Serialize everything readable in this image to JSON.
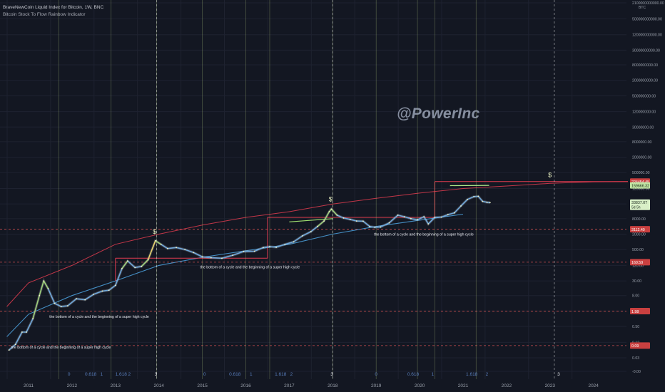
{
  "header": {
    "title": "BraveNewCoin Liquid Index for Bitcoin, 1W, BNC",
    "subtitle": "Bitcoin Stock To Flow Rainbow Indicator"
  },
  "watermark": "@PowerInc",
  "colors": {
    "background": "#131722",
    "grid": "#1e2230",
    "cycle_vline": "#c8e08c",
    "halving_vline": "#ffffff",
    "level_line": "#e05555",
    "label_red_bg": "#c94040",
    "label_green_bg": "#bfe3a3",
    "upper_bound": "#e03c4f",
    "lower_bound": "#4ea3e0",
    "fib_label": "#5a7fbf"
  },
  "chart_data": {
    "type": "line",
    "title": "BraveNewCoin Liquid Index for Bitcoin, 1W, BNC",
    "subtitle": "Bitcoin Stock To Flow Rainbow Indicator",
    "y_scale": "log",
    "ylim": [
      0.0,
      2100000000000
    ],
    "xlim": [
      2010.4,
      2024.9
    ],
    "y_axis_unit": "BTC",
    "y_ticks": [
      "2100000000000.00",
      "500000000000.00",
      "120000000000.00",
      "30000000000.00",
      "8000000000.00",
      "2000000000.00",
      "500000000.00",
      "120000000.00",
      "30000000.00",
      "8000000.00",
      "2000000.00",
      "500000.00",
      "120000.00",
      "30000.00",
      "8000.00",
      "2000.00",
      "500.00",
      "120.00",
      "30.00",
      "8.00",
      "2.00",
      "0.50",
      "0.12",
      "0.03",
      "-0.00"
    ],
    "y_tick_values": [
      2100000000000,
      500000000000,
      120000000000,
      30000000000,
      8000000000,
      2000000000,
      500000000,
      120000000,
      30000000,
      8000000,
      2000000,
      500000,
      120000,
      30000,
      8000,
      2000,
      500,
      120,
      30,
      8,
      2,
      0.5,
      0.12,
      0.03,
      0.0
    ],
    "x_ticks": [
      "2011",
      "2012",
      "2013",
      "2014",
      "2015",
      "2016",
      "2017",
      "2018",
      "2019",
      "2020",
      "2021",
      "2022",
      "2023",
      "2024"
    ],
    "x_tick_values": [
      2011,
      2012,
      2013,
      2014,
      2015,
      2016,
      2017,
      2018,
      2019,
      2020,
      2021,
      2022,
      2023,
      2024
    ],
    "price_series": {
      "x": [
        2010.55,
        2010.7,
        2010.85,
        2010.95,
        2011.1,
        2011.25,
        2011.35,
        2011.45,
        2011.6,
        2011.75,
        2011.9,
        2012.1,
        2012.3,
        2012.5,
        2012.7,
        2012.85,
        2013.0,
        2013.15,
        2013.28,
        2013.45,
        2013.6,
        2013.75,
        2013.92,
        2014.05,
        2014.2,
        2014.4,
        2014.6,
        2014.8,
        2015.0,
        2015.2,
        2015.45,
        2015.7,
        2015.95,
        2016.2,
        2016.4,
        2016.55,
        2016.7,
        2016.9,
        2017.1,
        2017.3,
        2017.5,
        2017.65,
        2017.8,
        2017.92,
        2017.97,
        2018.1,
        2018.25,
        2018.4,
        2018.55,
        2018.7,
        2018.85,
        2018.97,
        2019.1,
        2019.3,
        2019.5,
        2019.65,
        2019.8,
        2019.95,
        2020.1,
        2020.2,
        2020.35,
        2020.5,
        2020.65,
        2020.8,
        2020.95,
        2021.1,
        2021.25,
        2021.35,
        2021.45,
        2021.55,
        2021.62
      ],
      "y": [
        0.06,
        0.1,
        0.3,
        0.3,
        1.0,
        8.0,
        30.0,
        15.0,
        4.0,
        3.0,
        3.2,
        6.0,
        5.5,
        9.0,
        12.0,
        13.0,
        20.0,
        90.0,
        180.0,
        100.0,
        110.0,
        200.0,
        1100.0,
        800.0,
        550.0,
        600.0,
        500.0,
        380.0,
        260.0,
        240.0,
        230.0,
        300.0,
        420.0,
        430.0,
        600.0,
        650.0,
        610.0,
        800.0,
        1000.0,
        1700.0,
        2500.0,
        4000.0,
        6500.0,
        15000.0,
        19000.0,
        11000.0,
        8500.0,
        7500.0,
        6500.0,
        6400.0,
        4000.0,
        3700.0,
        3800.0,
        5500.0,
        11000.0,
        9500.0,
        8000.0,
        7300.0,
        9500.0,
        5000.0,
        9000.0,
        9200.0,
        11500.0,
        13500.0,
        25000.0,
        45000.0,
        58000.0,
        60000.0,
        38000.0,
        35000.0,
        33837.07
      ]
    },
    "upper_band": {
      "x": [
        2010.5,
        2011.0,
        2012.0,
        2013.0,
        2014.0,
        2015.0,
        2016.0,
        2017.0,
        2018.0,
        2019.0,
        2020.0,
        2021.0,
        2022.0,
        2023.0,
        2024.0,
        2024.9
      ],
      "y": [
        3.0,
        25.0,
        120.0,
        800.0,
        2000.0,
        4500.0,
        9000.0,
        15000.0,
        30000.0,
        50000.0,
        80000.0,
        120000.0,
        150000.0,
        190000.0,
        220000.0,
        224454.45
      ]
    },
    "lower_band": {
      "x": [
        2010.5,
        2011.0,
        2012.0,
        2013.0,
        2014.0,
        2015.0,
        2016.0,
        2017.0,
        2018.0,
        2019.0,
        2020.0,
        2021.0
      ],
      "y": [
        0.2,
        1.5,
        8.0,
        30.0,
        120.0,
        250.0,
        450.0,
        800.0,
        2000.0,
        4000.0,
        7000.0,
        12000.0
      ]
    },
    "step_levels": [
      {
        "x_start": 2013.0,
        "x_end": 2016.5,
        "y": 230.0
      },
      {
        "x_start": 2016.5,
        "x_end": 2020.35,
        "y": 9000.0
      },
      {
        "x_start": 2020.35,
        "x_end": 2024.9,
        "y": 224454.45
      }
    ],
    "model_segments": [
      {
        "x": [
          2020.7,
          2021.6
        ],
        "y": [
          155000.0,
          159666.32
        ],
        "color": "#b8f08c"
      },
      {
        "x": [
          2017.0,
          2018.0
        ],
        "y": [
          6000.0,
          8000.0
        ],
        "color": "#a0e070"
      }
    ],
    "horizontal_levels": [
      {
        "label": "224454.45",
        "value": 224454.45,
        "style": "red"
      },
      {
        "label": "159666.32",
        "value": 159666.32,
        "style": "green"
      },
      {
        "label": "3112.40",
        "value": 3112.4,
        "style": "red"
      },
      {
        "label": "160.59",
        "value": 160.59,
        "style": "red"
      },
      {
        "label": "1.98",
        "value": 1.98,
        "style": "red"
      },
      {
        "label": "0.09",
        "value": 0.09,
        "style": "red"
      }
    ],
    "current_price": {
      "label": "33837.07",
      "sub": "5d 5h",
      "value": 33837.07
    },
    "cycle_vlines": [
      2011.7,
      2012.9,
      2013.95,
      2015.0,
      2016.0,
      2016.55,
      2018.0,
      2019.0,
      2019.95,
      2020.35,
      2021.3
    ],
    "halving_vlines": [
      2013.95,
      2018.0,
      2023.1
    ],
    "fib_labels": [
      {
        "text": "0",
        "x": 2011.93
      },
      {
        "text": "0.618",
        "x": 2012.43
      },
      {
        "text": "1",
        "x": 2012.68
      },
      {
        "text": "1.618",
        "x": 2013.13
      },
      {
        "text": "2",
        "x": 2013.32
      },
      {
        "text": "3",
        "x": 2013.93
      },
      {
        "text": "0",
        "x": 2015.05
      },
      {
        "text": "0.618",
        "x": 2015.75
      },
      {
        "text": "1",
        "x": 2016.12
      },
      {
        "text": "1.618",
        "x": 2016.8
      },
      {
        "text": "2",
        "x": 2017.05
      },
      {
        "text": "3",
        "x": 2017.98
      },
      {
        "text": "0",
        "x": 2019.0
      },
      {
        "text": "0.618",
        "x": 2019.85
      },
      {
        "text": "1",
        "x": 2020.3
      },
      {
        "text": "1.618",
        "x": 2021.2
      },
      {
        "text": "2",
        "x": 2021.55
      },
      {
        "text": "3",
        "x": 2023.2
      }
    ],
    "annotations": [
      {
        "text": "the bottom of a cycle and the beginning of a super high cycle",
        "x": 2010.6,
        "y": 0.09
      },
      {
        "text": "the bottom of a cycle and the beginning of a super high cycle",
        "x": 2011.48,
        "y": 1.4
      },
      {
        "text": "the bottom of a cycle and the beginning of a super high cycle",
        "x": 2014.95,
        "y": 120.0
      },
      {
        "text": "the bottom of a cycle and the beginning of a super high cycle",
        "x": 2018.95,
        "y": 2300.0
      }
    ],
    "top_markers": [
      {
        "text": "$",
        "x": 2013.9,
        "y": 1400.0
      },
      {
        "text": "$",
        "x": 2017.95,
        "y": 26000.0
      },
      {
        "text": "$",
        "x": 2023.0,
        "y": 224454.45
      }
    ],
    "grid": true,
    "legend": "none"
  }
}
